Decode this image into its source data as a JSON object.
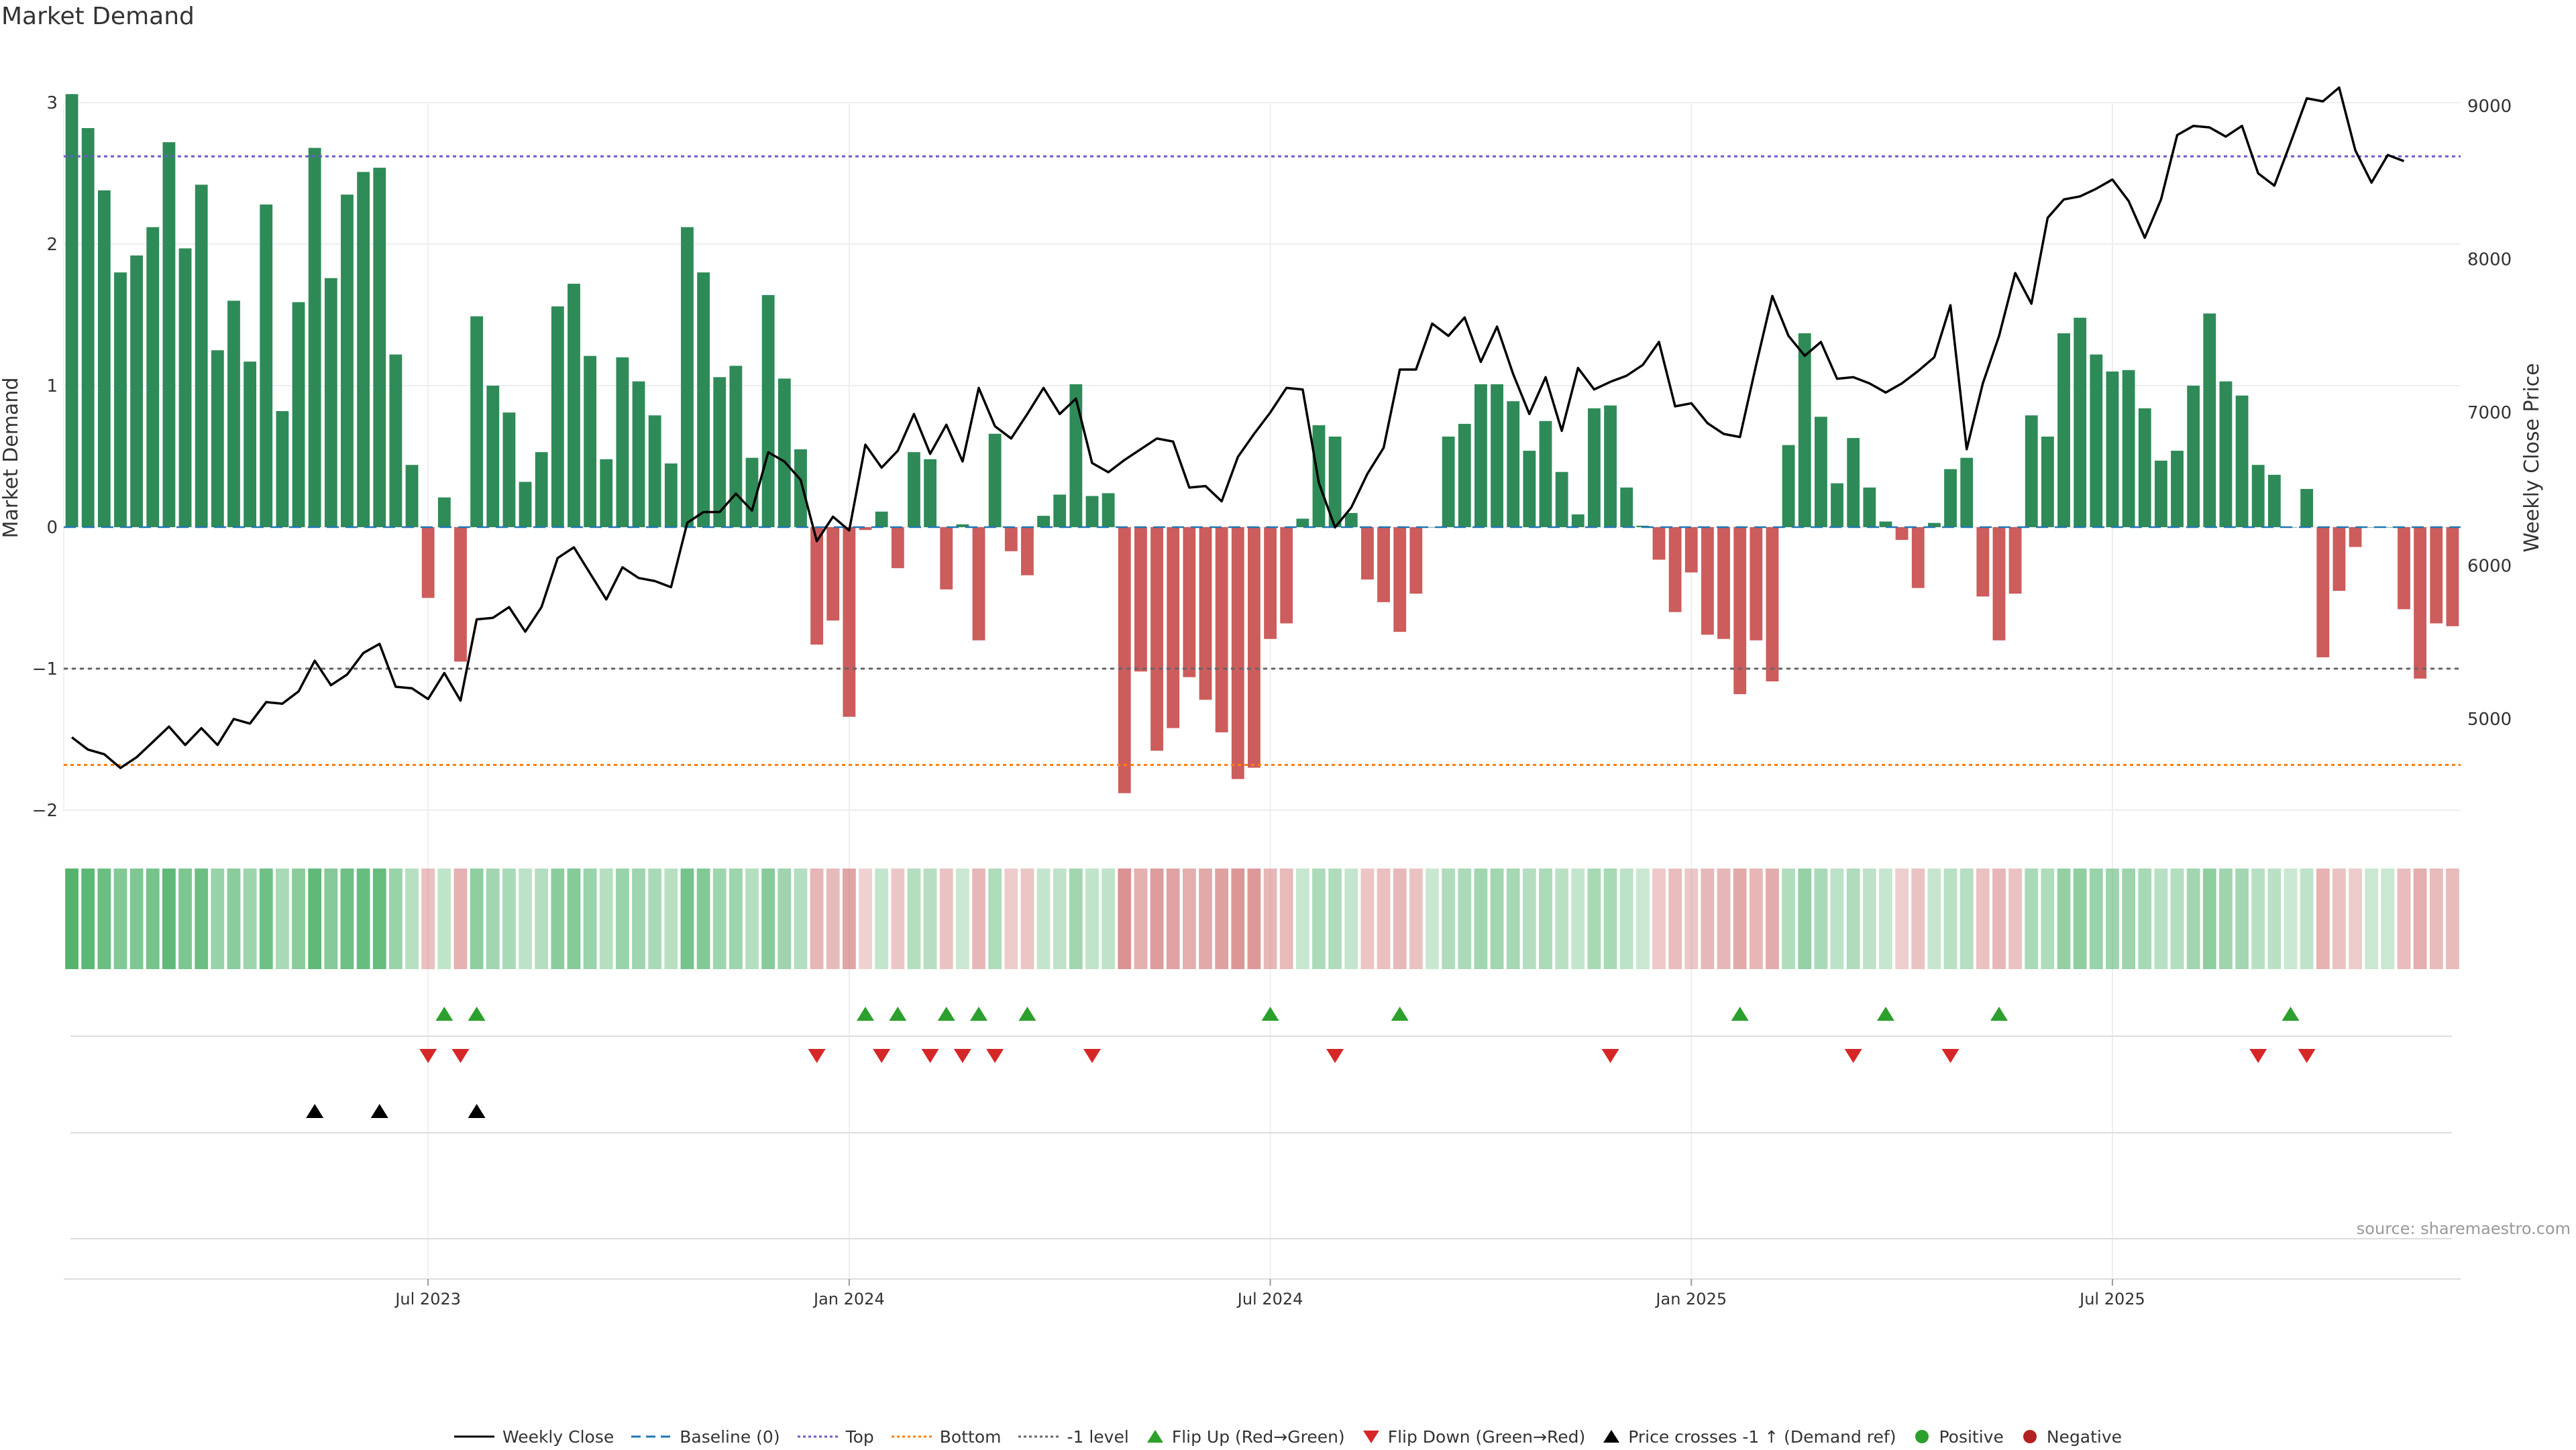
{
  "title": "Market Demand",
  "source": "source: sharemaestro.com",
  "colors": {
    "positive": "#2e8b57",
    "negative": "#cd5c5c",
    "price": "#000000",
    "baseline": "#1f77b4",
    "top": "#6a5acd",
    "bottom": "#ff7f0e",
    "minus1": "#666666",
    "flip_up": "#2ca02c",
    "flip_down": "#d62728",
    "cross": "#000000",
    "grid": "#eeeeee"
  },
  "legend": [
    {
      "label": "Weekly Close",
      "style": "line-solid",
      "color": "#000000"
    },
    {
      "label": "Baseline (0)",
      "style": "line-dashed",
      "color": "#1f77b4"
    },
    {
      "label": "Top",
      "style": "line-dotted",
      "color": "#6a5acd"
    },
    {
      "label": "Bottom",
      "style": "line-dotted",
      "color": "#ff7f0e"
    },
    {
      "label": "-1 level",
      "style": "line-dotted",
      "color": "#666666"
    },
    {
      "label": "Flip Up (Red→Green)",
      "style": "triangle-up",
      "color": "#2ca02c"
    },
    {
      "label": "Flip Down (Green→Red)",
      "style": "triangle-down",
      "color": "#d62728"
    },
    {
      "label": "Price crosses -1 ↑ (Demand ref)",
      "style": "triangle-up",
      "color": "#000000"
    },
    {
      "label": "Positive",
      "style": "dot",
      "color": "#2ca02c"
    },
    {
      "label": "Negative",
      "style": "dot",
      "color": "#b22222"
    }
  ],
  "chart_data": {
    "type": "bar",
    "title": "Market Demand",
    "ylabel": "Market Demand",
    "y2label": "Weekly Close Price",
    "ylim": [
      -2,
      3.2
    ],
    "y_ticks": [
      -2,
      -1,
      0,
      1,
      2,
      3
    ],
    "y_tick_labels": [
      "−2",
      "−1",
      "0",
      "1",
      "2",
      "3"
    ],
    "y2lim": [
      4450,
      9450
    ],
    "y2_ticks": [
      5000,
      6000,
      7000,
      8000,
      9000
    ],
    "y2_tick_labels": [
      "5000",
      "6000",
      "7000",
      "8000",
      "9000"
    ],
    "x_ticks": [
      {
        "label": "Jul 2023",
        "index": 22
      },
      {
        "label": "Jan 2024",
        "index": 48
      },
      {
        "label": "Jul 2024",
        "index": 74
      },
      {
        "label": "Jan 2025",
        "index": 100
      },
      {
        "label": "Jul 2025",
        "index": 126
      }
    ],
    "levels": {
      "baseline": 0,
      "top": 2.62,
      "bottom": -1.68,
      "minus1": -1
    },
    "demand": [
      3.06,
      2.82,
      2.38,
      1.8,
      1.92,
      2.12,
      2.72,
      1.97,
      2.42,
      1.25,
      1.6,
      1.17,
      2.28,
      0.82,
      1.59,
      2.68,
      1.76,
      2.35,
      2.51,
      2.54,
      1.22,
      0.44,
      -0.5,
      0.21,
      -0.95,
      1.49,
      1,
      0.81,
      0.32,
      0.53,
      1.56,
      1.72,
      1.21,
      0.48,
      1.2,
      1.03,
      0.79,
      0.45,
      2.12,
      1.8,
      1.06,
      1.14,
      0.49,
      1.64,
      1.05,
      0.55,
      -0.83,
      -0.66,
      -1.34,
      -0.02,
      0.11,
      -0.29,
      0.53,
      0.48,
      -0.44,
      0.02,
      -0.8,
      0.66,
      -0.17,
      -0.34,
      0.08,
      0.23,
      1.01,
      0.22,
      0.24,
      -1.88,
      -1.02,
      -1.58,
      -1.42,
      -1.06,
      -1.22,
      -1.45,
      -1.78,
      -1.7,
      -0.79,
      -0.68,
      0.06,
      0.72,
      0.64,
      0.1,
      -0.37,
      -0.53,
      -0.74,
      -0.47,
      0,
      0.64,
      0.73,
      1.01,
      1.01,
      0.89,
      0.54,
      0.75,
      0.39,
      0.09,
      0.84,
      0.86,
      0.28,
      0.01,
      -0.23,
      -0.6,
      -0.32,
      -0.76,
      -0.79,
      -1.18,
      -0.8,
      -1.09,
      0.58,
      1.37,
      0.78,
      0.31,
      0.63,
      0.28,
      0.04,
      -0.09,
      -0.43,
      0.03,
      0.41,
      0.49,
      -0.49,
      -0.8,
      -0.47,
      0.79,
      0.64,
      1.37,
      1.48,
      1.22,
      1.1,
      1.11,
      0.84,
      0.47,
      0.54,
      1,
      1.51,
      1.03,
      0.93,
      0.44,
      0.37,
      0,
      0.27,
      -0.92,
      -0.45,
      -0.14,
      0,
      0,
      -0.58,
      -1.07,
      -0.68,
      -0.7
    ],
    "close": [
      4880,
      4800,
      4770,
      4680,
      4750,
      4850,
      4950,
      4830,
      4940,
      4830,
      5000,
      4970,
      5110,
      5100,
      5180,
      5380,
      5220,
      5290,
      5430,
      5490,
      5210,
      5200,
      5130,
      5300,
      5120,
      5650,
      5660,
      5730,
      5570,
      5730,
      6050,
      6120,
      5950,
      5780,
      5990,
      5920,
      5900,
      5860,
      6280,
      6350,
      6350,
      6470,
      6360,
      6740,
      6680,
      6560,
      6160,
      6320,
      6230,
      6790,
      6640,
      6750,
      6990,
      6730,
      6920,
      6680,
      7160,
      6910,
      6830,
      6990,
      7160,
      6990,
      7090,
      6670,
      6610,
      6690,
      6760,
      6830,
      6810,
      6510,
      6520,
      6420,
      6710,
      6860,
      7000,
      7160,
      7150,
      6540,
      6250,
      6380,
      6600,
      6770,
      7280,
      7280,
      7580,
      7500,
      7620,
      7330,
      7560,
      7250,
      6990,
      7230,
      6880,
      7290,
      7150,
      7200,
      7240,
      7310,
      7460,
      7040,
      7060,
      6930,
      6860,
      6840,
      7310,
      7760,
      7500,
      7370,
      7460,
      7220,
      7230,
      7190,
      7130,
      7190,
      7270,
      7360,
      7700,
      6760,
      7190,
      7500,
      7910,
      7710,
      8270,
      8390,
      8410,
      8460,
      8520,
      8380,
      8140,
      8390,
      8810,
      8870,
      8860,
      8800,
      8870,
      8560,
      8480,
      8760,
      9050,
      9030,
      9120,
      8710,
      8500,
      8680,
      8640
    ],
    "flip_up_indices": [
      23,
      25,
      49,
      51,
      54,
      56,
      59,
      74,
      82,
      103,
      112,
      119,
      137
    ],
    "flip_down_indices": [
      22,
      24,
      46,
      50,
      53,
      55,
      57,
      63,
      78,
      95,
      110,
      116,
      135,
      138
    ],
    "price_cross_indices": [
      15,
      19,
      25
    ]
  }
}
